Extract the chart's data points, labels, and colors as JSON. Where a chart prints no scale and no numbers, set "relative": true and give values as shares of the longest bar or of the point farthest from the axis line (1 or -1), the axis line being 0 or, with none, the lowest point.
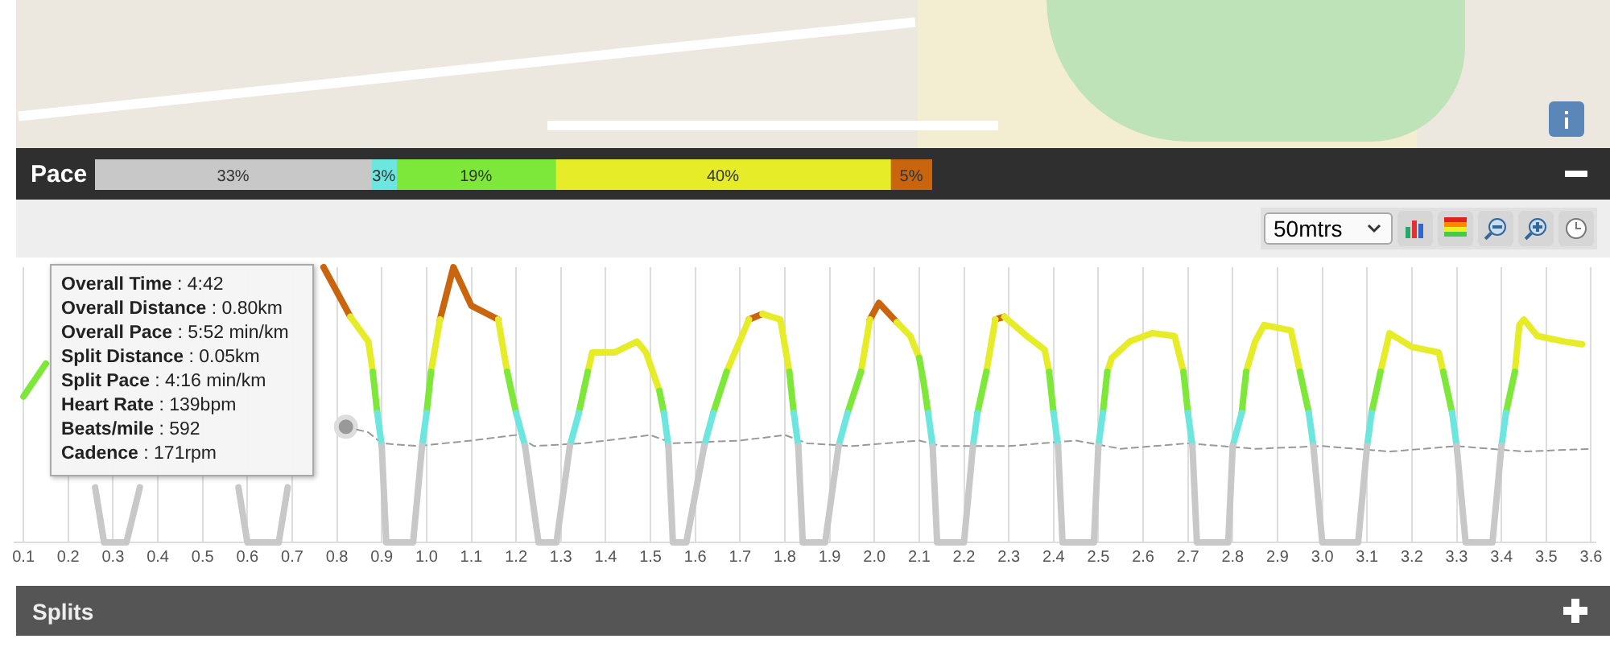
{
  "chart_data": [
    {
      "type": "bar",
      "title": "Pace",
      "orientation": "horizontal",
      "stacked": true,
      "categories": [
        null
      ],
      "series": [
        {
          "color": "#c8c8c8",
          "values": [
            33
          ],
          "value_labels": [
            "33%"
          ]
        },
        {
          "color": "#6ee6e0",
          "values": [
            3
          ],
          "value_labels": [
            "3%"
          ]
        },
        {
          "color": "#7ee83a",
          "values": [
            19
          ],
          "value_labels": [
            "19%"
          ]
        },
        {
          "color": "#e6ec28",
          "values": [
            40
          ],
          "value_labels": [
            "40%"
          ]
        },
        {
          "color": "#c8650e",
          "values": [
            5
          ],
          "value_labels": [
            "5%"
          ]
        }
      ]
    },
    {
      "type": "line",
      "relative": true,
      "grid": "x",
      "line_style": "solid",
      "xlim": [
        0.08,
        3.61
      ],
      "xticks": [
        0.1,
        0.2,
        0.3,
        0.4,
        0.5,
        0.6,
        0.7,
        0.8,
        0.9,
        {
          "value": 1,
          "label": "1.0"
        },
        1.1,
        1.2,
        1.3,
        1.4,
        1.5,
        1.6,
        1.7,
        1.8,
        1.9,
        {
          "value": 2,
          "label": "2.0"
        },
        2.1,
        2.2,
        2.3,
        2.4,
        2.5,
        2.6,
        2.7,
        2.8,
        2.9,
        {
          "value": 3,
          "label": "3.0"
        },
        3.1,
        3.2,
        3.3,
        3.4,
        3.5,
        3.6
      ],
      "annotations": [
        "Overall Time : 4:42",
        "Overall Distance : 0.80km",
        "Overall Pace : 5:52 min/km",
        "Split Distance : 0.05km",
        "Split Pace : 4:16 min/km",
        "Heart Rate : 139bpm",
        "Beats/mile : 592",
        "Cadence : 171rpm",
        "50mtrs",
        "Splits"
      ],
      "series": [
        {
          "color": "#c8c8c8",
          "x": [
            0.26,
            0.28,
            0.33,
            0.36,
            0.45,
            0.58,
            0.6,
            0.67,
            0.69,
            0.8,
            0.9,
            0.91,
            0.97,
            0.99,
            1.1,
            1.22,
            1.25,
            1.29,
            1.32,
            1.45,
            1.54,
            1.55,
            1.58,
            1.62,
            1.7,
            1.83,
            1.84,
            1.89,
            1.92,
            2.0,
            2.13,
            2.14,
            2.2,
            2.22,
            2.3,
            2.41,
            2.42,
            2.49,
            2.5,
            2.6,
            2.71,
            2.72,
            2.79,
            2.8,
            2.9,
            2.98,
            3.0,
            3.08,
            3.1,
            3.2,
            3.3,
            3.32,
            3.38,
            3.4
          ],
          "values": [
            0.2,
            0,
            0,
            0.2,
            null,
            0.2,
            0,
            0,
            0.2,
            null,
            0.35,
            0,
            0,
            0.35,
            null,
            0.35,
            0,
            0,
            0.35,
            null,
            0.35,
            0,
            0,
            0.35,
            null,
            0.35,
            0,
            0,
            0.35,
            null,
            0.35,
            0,
            0,
            0.35,
            null,
            0.35,
            0,
            0,
            0.35,
            null,
            0.35,
            0,
            0,
            0.35,
            null,
            0.35,
            0,
            0,
            0.35,
            null,
            0.35,
            0,
            0,
            0.35
          ]
        },
        {
          "color": "#6ee6e0",
          "x": [
            0.89,
            0.9,
            0.95,
            0.99,
            1.0,
            1.1,
            1.2,
            1.22,
            1.27,
            1.32,
            1.34,
            1.45,
            1.53,
            1.54,
            1.58,
            1.62,
            1.64,
            1.73,
            1.82,
            1.83,
            1.88,
            1.92,
            1.94,
            2.03,
            2.12,
            2.13,
            2.18,
            2.22,
            2.23,
            2.32,
            2.4,
            2.41,
            2.45,
            2.5,
            2.51,
            2.6,
            2.7,
            2.71,
            2.75,
            2.8,
            2.82,
            2.9,
            2.97,
            2.98,
            3.04,
            3.1,
            3.11,
            3.2,
            3.29,
            3.3,
            3.35,
            3.4,
            3.41
          ],
          "values": [
            0.47,
            0.35,
            null,
            0.35,
            0.47,
            null,
            0.47,
            0.35,
            null,
            0.35,
            0.47,
            null,
            0.47,
            0.35,
            null,
            0.35,
            0.47,
            null,
            0.47,
            0.35,
            null,
            0.35,
            0.47,
            null,
            0.47,
            0.35,
            null,
            0.35,
            0.47,
            null,
            0.47,
            0.35,
            null,
            0.35,
            0.47,
            null,
            0.47,
            0.35,
            null,
            0.35,
            0.47,
            null,
            0.47,
            0.35,
            null,
            0.35,
            0.47,
            null,
            0.47,
            0.35,
            null,
            0.35,
            0.47
          ]
        },
        {
          "color": "#7ee83a",
          "x": [
            0.1,
            0.15,
            0.5,
            0.88,
            0.89,
            0.95,
            1.0,
            1.01,
            1.1,
            1.18,
            1.2,
            1.27,
            1.34,
            1.36,
            1.45,
            1.52,
            1.53,
            1.58,
            1.64,
            1.67,
            1.73,
            1.81,
            1.82,
            1.88,
            1.94,
            1.97,
            2.03,
            2.1,
            2.11,
            2.12,
            2.18,
            2.23,
            2.25,
            2.32,
            2.39,
            2.4,
            2.45,
            2.51,
            2.52,
            2.6,
            2.69,
            2.7,
            2.75,
            2.82,
            2.83,
            2.9,
            2.95,
            2.97,
            3.04,
            3.11,
            3.13,
            3.2,
            3.27,
            3.29,
            3.35,
            3.41,
            3.43
          ],
          "values": [
            0.53,
            0.65,
            null,
            0.62,
            0.47,
            null,
            0.47,
            0.62,
            null,
            0.62,
            0.47,
            null,
            0.47,
            0.62,
            null,
            0.55,
            0.47,
            null,
            0.47,
            0.62,
            null,
            0.62,
            0.47,
            null,
            0.47,
            0.62,
            null,
            0.67,
            0.58,
            0.47,
            null,
            0.47,
            0.62,
            null,
            0.62,
            0.47,
            null,
            0.47,
            0.62,
            null,
            0.62,
            0.47,
            null,
            0.47,
            0.62,
            null,
            0.62,
            0.47,
            null,
            0.47,
            0.62,
            null,
            0.62,
            0.47,
            null,
            0.47,
            0.62
          ]
        },
        {
          "color": "#e6ec28",
          "x": [
            0.83,
            0.87,
            0.88,
            0.95,
            1.01,
            1.03,
            1.1,
            1.16,
            1.18,
            1.27,
            1.36,
            1.37,
            1.42,
            1.47,
            1.49,
            1.52,
            1.6,
            1.67,
            1.72,
            1.73,
            1.75,
            1.79,
            1.81,
            1.88,
            1.97,
            1.99,
            2.03,
            2.05,
            2.08,
            2.1,
            2.18,
            2.25,
            2.27,
            2.28,
            2.29,
            2.34,
            2.38,
            2.39,
            2.45,
            2.52,
            2.53,
            2.57,
            2.62,
            2.67,
            2.69,
            2.75,
            2.83,
            2.85,
            2.87,
            2.93,
            2.95,
            3.04,
            3.13,
            3.15,
            3.2,
            3.26,
            3.27,
            3.35,
            3.43,
            3.44,
            3.45,
            3.48,
            3.54,
            3.58
          ],
          "values": [
            0.82,
            0.73,
            0.62,
            null,
            0.62,
            0.81,
            null,
            0.81,
            0.62,
            null,
            0.62,
            0.69,
            0.69,
            0.73,
            0.69,
            0.55,
            null,
            0.62,
            0.81,
            null,
            0.83,
            0.81,
            0.62,
            null,
            0.62,
            0.81,
            null,
            0.8,
            0.75,
            0.67,
            null,
            0.62,
            0.81,
            null,
            0.82,
            0.75,
            0.7,
            0.62,
            null,
            0.62,
            0.67,
            0.73,
            0.76,
            0.75,
            0.62,
            null,
            0.62,
            0.73,
            0.79,
            0.77,
            0.62,
            null,
            0.62,
            0.76,
            0.71,
            0.69,
            0.62,
            null,
            0.62,
            0.79,
            0.81,
            0.75,
            0.73,
            0.72
          ]
        },
        {
          "color": "#c8650e",
          "x": [
            0.77,
            0.83,
            0.95,
            1.03,
            1.06,
            1.1,
            1.16,
            1.4,
            1.72,
            1.75,
            1.85,
            1.99,
            2.01,
            2.05,
            2.15,
            2.27,
            2.29
          ],
          "values": [
            1.0,
            0.82,
            null,
            0.81,
            1.0,
            0.86,
            0.81,
            null,
            0.81,
            0.83,
            null,
            0.81,
            0.87,
            0.8,
            null,
            0.81,
            0.82
          ]
        },
        {
          "color": "#999999",
          "line_style": "dashed",
          "x": [
            0.82,
            0.87,
            0.9,
            0.98,
            1.1,
            1.2,
            1.24,
            1.35,
            1.5,
            1.55,
            1.7,
            1.8,
            1.85,
            1.95,
            2.1,
            2.15,
            2.3,
            2.45,
            2.55,
            2.7,
            2.85,
            3.0,
            3.15,
            3.3,
            3.45,
            3.6
          ],
          "values": [
            0.42,
            0.4,
            0.36,
            0.35,
            0.37,
            0.39,
            0.35,
            0.36,
            0.39,
            0.36,
            0.37,
            0.39,
            0.36,
            0.35,
            0.37,
            0.35,
            0.35,
            0.37,
            0.34,
            0.36,
            0.34,
            0.35,
            0.33,
            0.35,
            0.33,
            0.34
          ]
        },
        {
          "type": "scatter",
          "marker": "circle",
          "color": "#999999",
          "x": [
            0.82
          ],
          "values": [
            0.42
          ]
        }
      ]
    }
  ]
}
